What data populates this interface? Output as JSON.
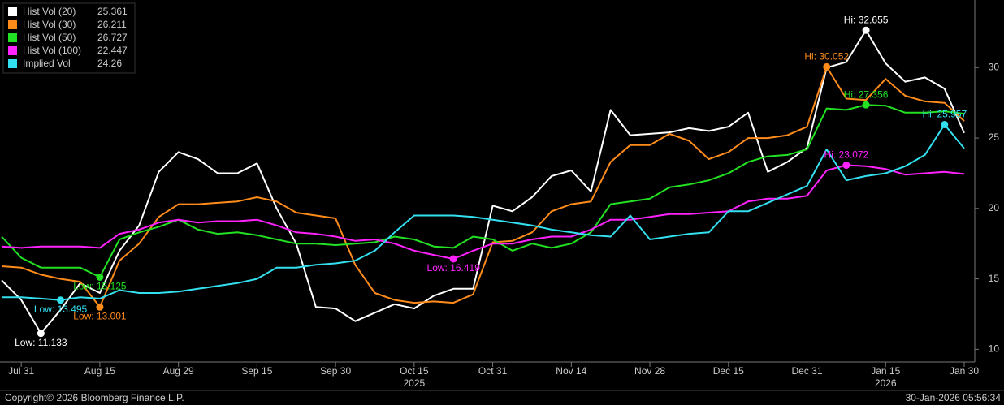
{
  "chart_data": {
    "type": "line",
    "categories": [
      null,
      "Jul 31",
      null,
      null,
      null,
      "Aug 15",
      null,
      null,
      null,
      "Aug 29",
      null,
      null,
      null,
      "Sep 15",
      null,
      null,
      null,
      "Sep 30",
      null,
      null,
      null,
      "Oct 15",
      null,
      null,
      null,
      "Oct 31",
      null,
      null,
      null,
      "Nov 14",
      null,
      null,
      null,
      "Nov 28",
      null,
      null,
      null,
      "Dec 15",
      null,
      null,
      null,
      "Dec 31",
      null,
      null,
      null,
      "Jan 15",
      null,
      null,
      null,
      "Jan 30"
    ],
    "year_labels": [
      {
        "text": "2025",
        "under": "Oct 15"
      },
      {
        "text": "2026",
        "under": "Jan 15"
      }
    ],
    "series": [
      {
        "name": "Hist Vol (20)",
        "color": "#ffffff",
        "values": [
          14.9,
          13.5,
          11.133,
          12.8,
          14.7,
          14.0,
          17.0,
          18.8,
          22.6,
          24.0,
          23.5,
          22.5,
          22.5,
          23.2,
          20.0,
          17.5,
          13.0,
          12.9,
          12.0,
          12.6,
          13.2,
          12.9,
          13.8,
          14.3,
          14.3,
          20.2,
          19.8,
          20.8,
          22.3,
          22.7,
          21.2,
          27.0,
          25.2,
          25.3,
          25.4,
          25.7,
          25.5,
          25.8,
          26.8,
          22.6,
          23.3,
          24.3,
          30.0,
          30.4,
          32.655,
          30.3,
          29.0,
          29.3,
          28.5,
          25.361
        ]
      },
      {
        "name": "Hist Vol (30)",
        "color": "#ff8c1a",
        "values": [
          15.9,
          15.8,
          15.3,
          15.0,
          14.8,
          13.001,
          16.3,
          17.5,
          19.4,
          20.3,
          20.3,
          20.4,
          20.5,
          20.8,
          20.5,
          19.7,
          19.5,
          19.3,
          16.0,
          14.0,
          13.5,
          13.3,
          13.4,
          13.3,
          13.9,
          17.6,
          17.7,
          18.3,
          19.8,
          20.3,
          20.5,
          23.3,
          24.5,
          24.5,
          25.3,
          24.8,
          23.5,
          24.0,
          25.0,
          25.0,
          25.2,
          25.8,
          30.052,
          27.8,
          27.7,
          29.2,
          28.0,
          27.6,
          27.5,
          26.211
        ]
      },
      {
        "name": "Hist Vol (50)",
        "color": "#22e022",
        "values": [
          18.0,
          16.5,
          15.8,
          15.8,
          15.8,
          15.125,
          17.8,
          18.3,
          18.7,
          19.2,
          18.5,
          18.2,
          18.3,
          18.1,
          17.8,
          17.5,
          17.5,
          17.4,
          17.5,
          17.6,
          18.0,
          17.8,
          17.3,
          17.2,
          18.0,
          17.8,
          17.0,
          17.5,
          17.2,
          17.5,
          18.3,
          20.3,
          20.5,
          20.7,
          21.5,
          21.7,
          22.0,
          22.5,
          23.3,
          23.7,
          23.8,
          24.2,
          27.1,
          27.0,
          27.356,
          27.3,
          26.8,
          26.8,
          26.9,
          26.727
        ]
      },
      {
        "name": "Hist Vol (100)",
        "color": "#ff22ff",
        "values": [
          17.3,
          17.2,
          17.3,
          17.3,
          17.3,
          17.2,
          18.2,
          18.5,
          19.0,
          19.2,
          19.0,
          19.1,
          19.1,
          19.2,
          18.8,
          18.3,
          18.2,
          18.0,
          17.7,
          17.8,
          17.5,
          17.0,
          16.7,
          16.419,
          17.0,
          17.5,
          17.5,
          17.8,
          18.0,
          18.0,
          18.5,
          19.2,
          19.2,
          19.4,
          19.6,
          19.6,
          19.7,
          19.8,
          20.5,
          20.7,
          20.7,
          20.9,
          22.7,
          23.072,
          23.0,
          22.8,
          22.4,
          22.5,
          22.6,
          22.447
        ]
      },
      {
        "name": "Implied Vol",
        "color": "#33e0f0",
        "values": [
          13.7,
          13.7,
          13.6,
          13.495,
          13.7,
          13.6,
          14.2,
          14.0,
          14.0,
          14.1,
          14.3,
          14.5,
          14.7,
          15.0,
          15.8,
          15.8,
          16.0,
          16.1,
          16.3,
          17.0,
          18.3,
          19.5,
          19.5,
          19.5,
          19.4,
          19.2,
          19.0,
          18.8,
          18.5,
          18.3,
          18.1,
          18.0,
          19.5,
          17.8,
          18.0,
          18.2,
          18.3,
          19.8,
          19.8,
          20.4,
          21.0,
          21.6,
          24.2,
          22.0,
          22.3,
          22.5,
          23.0,
          23.8,
          25.957,
          24.26
        ]
      }
    ],
    "annotations": [
      {
        "text": "Low: 11.133",
        "series": "Hist Vol (20)",
        "value": 11.133
      },
      {
        "text": "Hi: 32.655",
        "series": "Hist Vol (20)",
        "value": 32.655
      },
      {
        "text": "Low: 13.001",
        "series": "Hist Vol (30)",
        "value": 13.001
      },
      {
        "text": "Hi: 30.052",
        "series": "Hist Vol (30)",
        "value": 30.052
      },
      {
        "text": "Low: 15.125",
        "series": "Hist Vol (50)",
        "value": 15.125
      },
      {
        "text": "Hi: 27.356",
        "series": "Hist Vol (50)",
        "value": 27.356
      },
      {
        "text": "Low: 16.419",
        "series": "Hist Vol (100)",
        "value": 16.419
      },
      {
        "text": "Hi: 23.072",
        "series": "Hist Vol (100)",
        "value": 23.072
      },
      {
        "text": "Low: 13.495",
        "series": "Implied Vol",
        "value": 13.495
      },
      {
        "text": "Hi: 25.957",
        "series": "Implied Vol",
        "value": 25.957
      }
    ],
    "ylim": [
      9.1,
      34.8
    ],
    "yticks": [
      10,
      15,
      20,
      25,
      30
    ],
    "footer_left": "Copyright© 2026 Bloomberg Finance L.P.",
    "footer_right": "30-Jan-2026 05:56:34"
  }
}
